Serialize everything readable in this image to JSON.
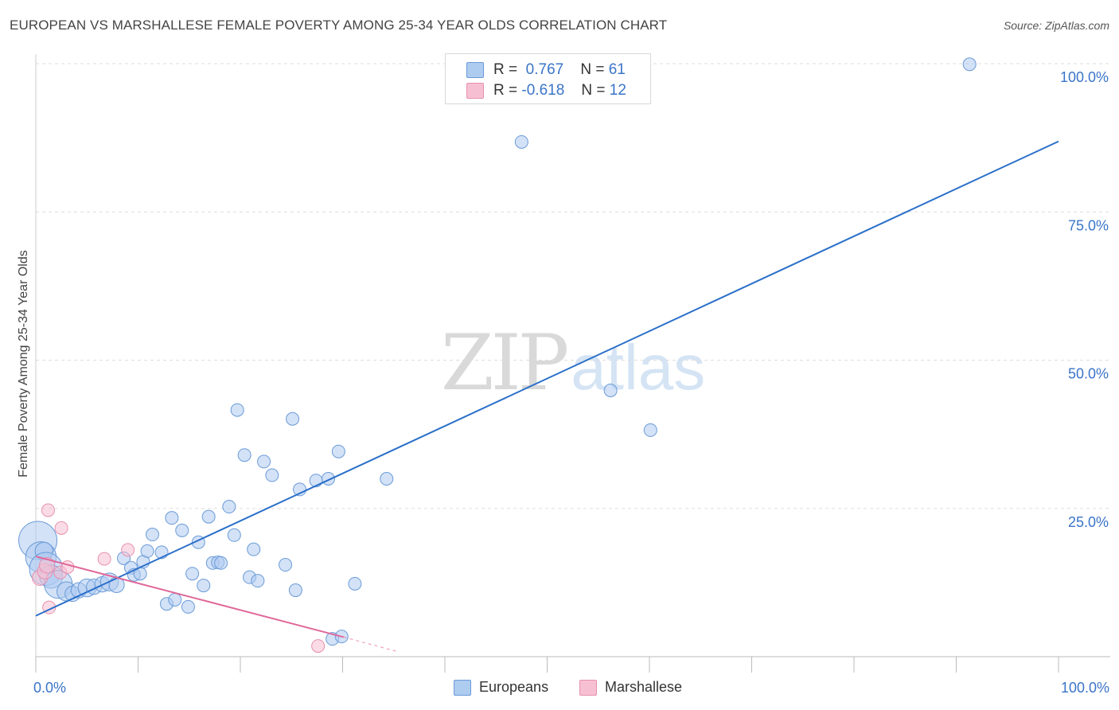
{
  "header": {
    "title": "EUROPEAN VS MARSHALLESE FEMALE POVERTY AMONG 25-34 YEAR OLDS CORRELATION CHART",
    "source": "Source: ZipAtlas.com"
  },
  "watermark": {
    "zip": "ZIP",
    "atlas": "atlas"
  },
  "legend_top": [
    {
      "r_label": "R =",
      "r_value": "0.767",
      "n_label": "N =",
      "n_value": "61"
    },
    {
      "r_label": "R =",
      "r_value": "-0.618",
      "n_label": "N =",
      "n_value": "12"
    }
  ],
  "legend_bottom": {
    "europeans": "Europeans",
    "marshallese": "Marshallese"
  },
  "colors": {
    "europeans_fill": "#aecbf0",
    "europeans_stroke": "#6a9bd8",
    "europeans_line": "#2a6fc9",
    "marshallese_fill": "#f7c0d2",
    "marshallese_stroke": "#e690ae",
    "marshallese_line": "#e0679a",
    "tick_label": "#3a74c8",
    "grid": "#dddddd"
  },
  "chart_data": {
    "type": "scatter",
    "title": "EUROPEAN VS MARSHALLESE FEMALE POVERTY AMONG 25-34 YEAR OLDS CORRELATION CHART",
    "xlabel": "",
    "ylabel": "Female Poverty Among 25-34 Year Olds",
    "xlim": [
      0,
      100
    ],
    "ylim": [
      0,
      100
    ],
    "x_tick_labels": [
      {
        "value": 0,
        "label": "0.0%"
      },
      {
        "value": 100,
        "label": "100.0%"
      }
    ],
    "y_tick_labels": [
      {
        "value": 25,
        "label": "25.0%"
      },
      {
        "value": 50,
        "label": "50.0%"
      },
      {
        "value": 75,
        "label": "75.0%"
      },
      {
        "value": 100,
        "label": "100.0%"
      }
    ],
    "x_ticks": [
      0,
      10,
      20,
      30,
      40,
      50,
      60,
      70,
      80,
      90,
      100
    ],
    "grid": true,
    "series": [
      {
        "name": "Europeans",
        "r": 0.767,
        "n": 61,
        "trend": {
          "x": [
            0,
            100
          ],
          "y": [
            6.9,
            86.9
          ]
        },
        "points": [
          [
            0.2,
            19.6,
            3.0
          ],
          [
            0.5,
            16.8,
            2.4
          ],
          [
            0.8,
            17.8,
            1.4
          ],
          [
            1.0,
            14.8,
            2.6
          ],
          [
            1.5,
            13.5,
            1.8
          ],
          [
            2.2,
            12.2,
            2.2
          ],
          [
            3.0,
            11.0,
            1.5
          ],
          [
            3.6,
            10.6,
            1.2
          ],
          [
            4.2,
            11.2,
            1.2
          ],
          [
            5.0,
            11.6,
            1.4
          ],
          [
            5.7,
            11.8,
            1.2
          ],
          [
            6.5,
            12.2,
            1.2
          ],
          [
            7.2,
            12.6,
            1.4
          ],
          [
            7.9,
            12.1,
            1.2
          ],
          [
            8.6,
            16.6,
            1.0
          ],
          [
            9.3,
            15.0,
            1.0
          ],
          [
            9.6,
            13.8,
            1.0
          ],
          [
            10.2,
            14.0,
            1.0
          ],
          [
            10.5,
            16.0,
            1.0
          ],
          [
            10.9,
            17.8,
            1.0
          ],
          [
            11.4,
            20.6,
            1.0
          ],
          [
            12.3,
            17.6,
            1.0
          ],
          [
            12.8,
            8.9,
            1.0
          ],
          [
            13.3,
            23.4,
            1.0
          ],
          [
            13.6,
            9.6,
            1.0
          ],
          [
            14.3,
            21.3,
            1.0
          ],
          [
            14.9,
            8.4,
            1.0
          ],
          [
            15.3,
            14.0,
            1.0
          ],
          [
            15.9,
            19.3,
            1.0
          ],
          [
            16.4,
            12.0,
            1.0
          ],
          [
            16.9,
            23.6,
            1.0
          ],
          [
            17.3,
            15.8,
            1.0
          ],
          [
            17.8,
            15.9,
            1.0
          ],
          [
            18.1,
            15.8,
            1.0
          ],
          [
            18.9,
            25.3,
            1.0
          ],
          [
            19.4,
            20.5,
            1.0
          ],
          [
            19.7,
            41.6,
            1.0
          ],
          [
            20.4,
            34.0,
            1.0
          ],
          [
            20.9,
            13.4,
            1.0
          ],
          [
            21.3,
            18.1,
            1.0
          ],
          [
            21.7,
            12.8,
            1.0
          ],
          [
            22.3,
            32.9,
            1.0
          ],
          [
            23.1,
            30.6,
            1.0
          ],
          [
            24.4,
            15.5,
            1.0
          ],
          [
            25.1,
            40.1,
            1.0
          ],
          [
            25.4,
            11.2,
            1.0
          ],
          [
            25.8,
            28.2,
            1.0
          ],
          [
            27.4,
            29.7,
            1.0
          ],
          [
            28.6,
            30.0,
            1.0
          ],
          [
            29.0,
            3.0,
            1.0
          ],
          [
            29.6,
            34.6,
            1.0
          ],
          [
            29.9,
            3.4,
            1.0
          ],
          [
            31.2,
            12.3,
            1.0
          ],
          [
            34.3,
            30.0,
            1.0
          ],
          [
            47.5,
            86.8,
            1.0
          ],
          [
            56.2,
            44.9,
            1.0
          ],
          [
            60.1,
            38.2,
            1.0
          ],
          [
            91.3,
            99.9,
            1.0
          ]
        ]
      },
      {
        "name": "Marshallese",
        "r": -0.618,
        "n": 12,
        "trend": {
          "x": [
            0,
            30.1
          ],
          "y": [
            16.9,
            3.3
          ]
        },
        "trend_ext": {
          "x": [
            30.1,
            35.5
          ],
          "y": [
            3.3,
            0.8
          ]
        },
        "points": [
          [
            0.4,
            13.3,
            1.2
          ],
          [
            0.9,
            14.4,
            1.2
          ],
          [
            1.1,
            15.4,
            1.2
          ],
          [
            1.2,
            24.7,
            1.0
          ],
          [
            1.3,
            8.3,
            1.0
          ],
          [
            2.4,
            14.2,
            1.0
          ],
          [
            2.5,
            21.7,
            1.0
          ],
          [
            3.1,
            15.1,
            1.0
          ],
          [
            6.7,
            16.5,
            1.0
          ],
          [
            9.0,
            18.0,
            1.0
          ],
          [
            27.6,
            1.8,
            1.0
          ]
        ]
      }
    ]
  }
}
